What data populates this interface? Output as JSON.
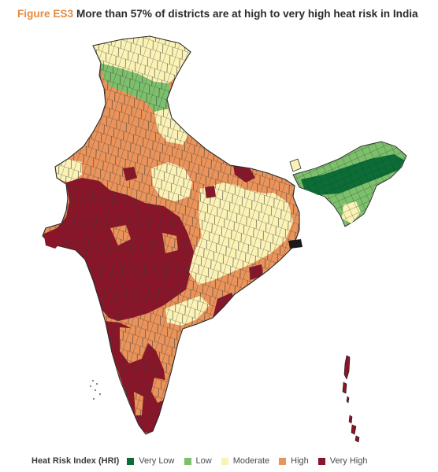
{
  "title": {
    "prefix": "Figure ES3",
    "text": "More than 57% of districts are at high to very high heat risk in India"
  },
  "legend": {
    "title": "Heat Risk Index (HRI)",
    "items": [
      {
        "label": "Very Low",
        "color": "#0b6e36"
      },
      {
        "label": "Low",
        "color": "#7cc06c"
      },
      {
        "label": "Moderate",
        "color": "#fbf2b5"
      },
      {
        "label": "High",
        "color": "#ea935a"
      },
      {
        "label": "Very High",
        "color": "#8c1428"
      }
    ]
  },
  "colors": {
    "border": "#2a2a2a",
    "district_lines": "#3a3a3a"
  }
}
